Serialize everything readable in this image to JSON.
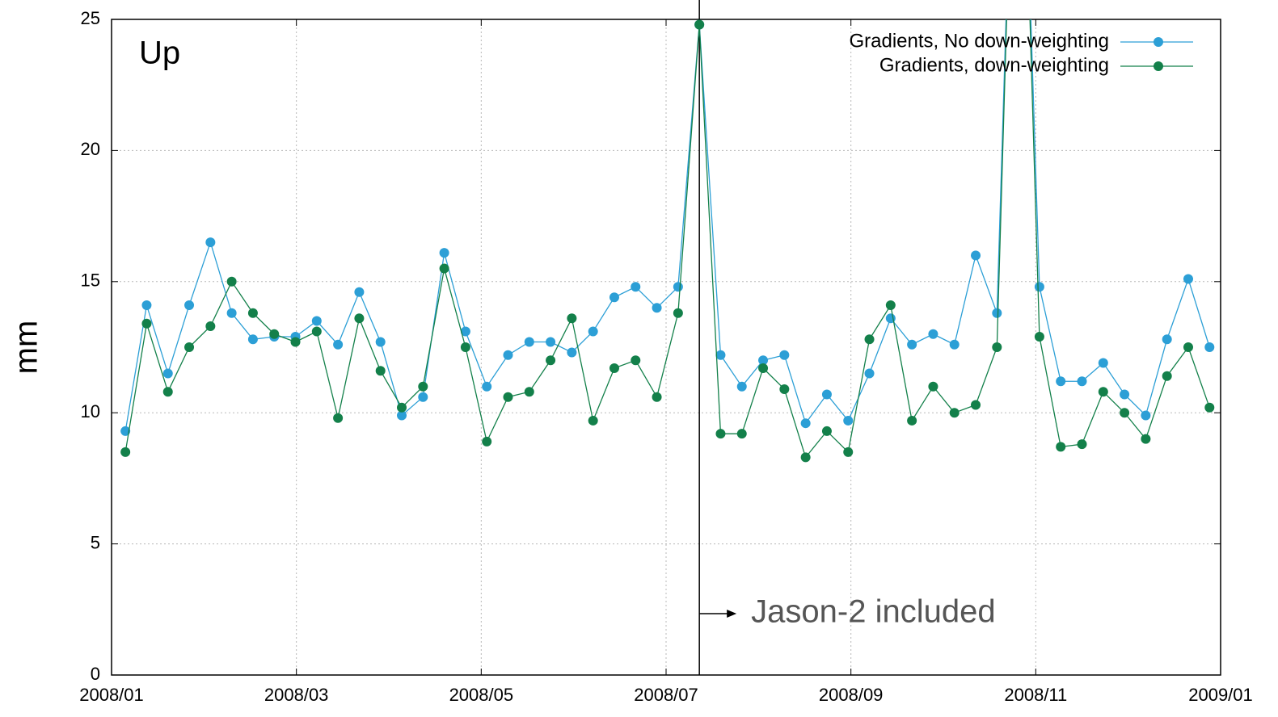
{
  "chart_data": {
    "type": "line",
    "panel_label": "Up",
    "y_label": "mm",
    "x": [
      0.15,
      0.38,
      0.61,
      0.84,
      1.07,
      1.3,
      1.53,
      1.76,
      1.99,
      2.22,
      2.45,
      2.68,
      2.91,
      3.14,
      3.37,
      3.6,
      3.83,
      4.06,
      4.29,
      4.52,
      4.75,
      4.98,
      5.21,
      5.44,
      5.67,
      5.9,
      6.13,
      6.36,
      6.59,
      6.82,
      7.05,
      7.28,
      7.51,
      7.74,
      7.97,
      8.2,
      8.43,
      8.66,
      8.89,
      9.12,
      9.35,
      9.58,
      9.81,
      10.04,
      10.27,
      10.5,
      10.73,
      10.96,
      11.19,
      11.42,
      11.65,
      11.88
    ],
    "xlim": [
      0,
      12
    ],
    "xticks": [
      {
        "value": 0,
        "label": "2008/01"
      },
      {
        "value": 2,
        "label": "2008/03"
      },
      {
        "value": 4,
        "label": "2008/05"
      },
      {
        "value": 6,
        "label": "2008/07"
      },
      {
        "value": 8,
        "label": "2008/09"
      },
      {
        "value": 10,
        "label": "2008/11"
      },
      {
        "value": 12,
        "label": "2009/01"
      }
    ],
    "ylim": [
      0,
      25
    ],
    "yticks": [
      0,
      5,
      10,
      15,
      20,
      25
    ],
    "grid": true,
    "legend": "top-right",
    "series": [
      {
        "name": "Gradients, No down-weighting",
        "color": "#2c9fd6",
        "values": [
          9.3,
          14.1,
          11.5,
          14.1,
          16.5,
          13.8,
          12.8,
          12.9,
          12.9,
          13.5,
          12.6,
          14.6,
          12.7,
          9.9,
          10.6,
          16.1,
          13.1,
          11.0,
          12.2,
          12.7,
          12.7,
          12.3,
          13.1,
          14.4,
          14.8,
          14.0,
          14.8,
          24.8,
          12.2,
          11.0,
          12.0,
          12.2,
          9.6,
          10.7,
          9.7,
          11.5,
          13.6,
          12.6,
          13.0,
          12.6,
          16.0,
          13.8,
          40,
          14.8,
          11.2,
          11.2,
          11.9,
          10.7,
          9.9,
          12.8,
          15.1,
          12.5
        ]
      },
      {
        "name": "Gradients, down-weighting",
        "color": "#13804a",
        "values": [
          8.5,
          13.4,
          10.8,
          12.5,
          13.3,
          15.0,
          13.8,
          13.0,
          12.7,
          13.1,
          9.8,
          13.6,
          11.6,
          10.2,
          11.0,
          15.5,
          12.5,
          8.9,
          10.6,
          10.8,
          12.0,
          13.6,
          9.7,
          11.7,
          12.0,
          10.6,
          13.8,
          24.8,
          9.2,
          9.2,
          11.7,
          10.9,
          8.3,
          9.3,
          8.5,
          12.8,
          14.1,
          9.7,
          11.0,
          10.0,
          10.3,
          12.5,
          40,
          12.9,
          8.7,
          8.8,
          10.8,
          10.0,
          9.0,
          11.4,
          12.5,
          10.2
        ]
      }
    ],
    "annotation": {
      "text": "Jason-2 included",
      "x": 6.36
    }
  }
}
